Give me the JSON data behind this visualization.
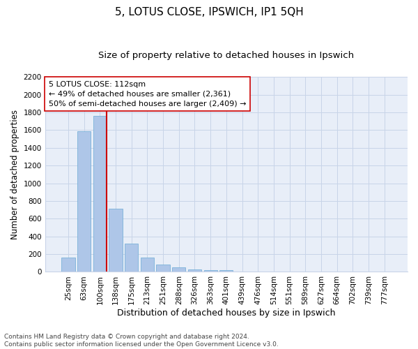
{
  "title_line1": "5, LOTUS CLOSE, IPSWICH, IP1 5QH",
  "title_line2": "Size of property relative to detached houses in Ipswich",
  "xlabel": "Distribution of detached houses by size in Ipswich",
  "ylabel": "Number of detached properties",
  "categories": [
    "25sqm",
    "63sqm",
    "100sqm",
    "138sqm",
    "175sqm",
    "213sqm",
    "251sqm",
    "288sqm",
    "326sqm",
    "363sqm",
    "401sqm",
    "439sqm",
    "476sqm",
    "514sqm",
    "551sqm",
    "589sqm",
    "627sqm",
    "664sqm",
    "702sqm",
    "739sqm",
    "777sqm"
  ],
  "values": [
    160,
    1590,
    1760,
    710,
    315,
    160,
    85,
    52,
    30,
    20,
    20,
    0,
    0,
    0,
    0,
    0,
    0,
    0,
    0,
    0,
    0
  ],
  "bar_color": "#aec6e8",
  "bar_edgecolor": "#6aaad4",
  "vline_bar_index": 2,
  "vline_color": "#cc0000",
  "annotation_text": "5 LOTUS CLOSE: 112sqm\n← 49% of detached houses are smaller (2,361)\n50% of semi-detached houses are larger (2,409) →",
  "annotation_box_edgecolor": "#cc0000",
  "annotation_box_facecolor": "#ffffff",
  "ylim": [
    0,
    2200
  ],
  "yticks": [
    0,
    200,
    400,
    600,
    800,
    1000,
    1200,
    1400,
    1600,
    1800,
    2000,
    2200
  ],
  "grid_color": "#c8d4e8",
  "bg_color": "#e8eef8",
  "footnote": "Contains HM Land Registry data © Crown copyright and database right 2024.\nContains public sector information licensed under the Open Government Licence v3.0.",
  "title_fontsize": 11,
  "subtitle_fontsize": 9.5,
  "xlabel_fontsize": 9,
  "ylabel_fontsize": 8.5,
  "tick_fontsize": 7.5,
  "annot_fontsize": 8,
  "footnote_fontsize": 6.5
}
